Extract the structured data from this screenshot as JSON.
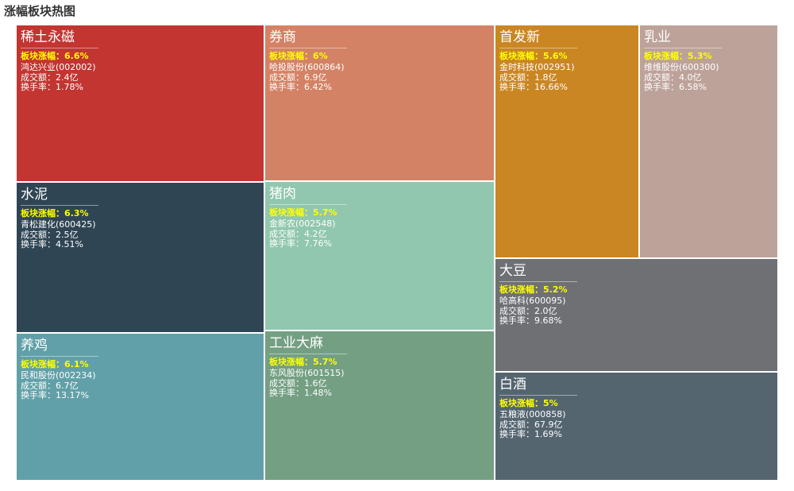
{
  "page": {
    "title": "涨幅板块热图"
  },
  "chart_data": {
    "type": "treemap",
    "title": "涨幅板块热图",
    "labels": {
      "rise": "板块涨幅：",
      "volume": "成交额：",
      "turnover": "换手率："
    },
    "items": [
      {
        "name": "稀土永磁",
        "rise": "6.6%",
        "stock": "鸿达兴业(002002)",
        "volume": "2.4亿",
        "turnover": "1.78%",
        "color": "#c23531"
      },
      {
        "name": "水泥",
        "rise": "6.3%",
        "stock": "青松建化(600425)",
        "volume": "2.5亿",
        "turnover": "4.51%",
        "color": "#2f4554"
      },
      {
        "name": "养鸡",
        "rise": "6.1%",
        "stock": "民和股份(002234)",
        "volume": "6.7亿",
        "turnover": "13.17%",
        "color": "#61a0a8"
      },
      {
        "name": "券商",
        "rise": "6%",
        "stock": "哈投股份(600864)",
        "volume": "6.9亿",
        "turnover": "6.42%",
        "color": "#d48265"
      },
      {
        "name": "猪肉",
        "rise": "5.7%",
        "stock": "金新农(002548)",
        "volume": "4.2亿",
        "turnover": "7.76%",
        "color": "#91c7ae"
      },
      {
        "name": "工业大麻",
        "rise": "5.7%",
        "stock": "东风股份(601515)",
        "volume": "1.6亿",
        "turnover": "1.48%",
        "color": "#749f83"
      },
      {
        "name": "首发新",
        "rise": "5.6%",
        "stock": "金时科技(002951)",
        "volume": "1.8亿",
        "turnover": "16.66%",
        "color": "#ca8622"
      },
      {
        "name": "乳业",
        "rise": "5.3%",
        "stock": "维维股份(600300)",
        "volume": "4.0亿",
        "turnover": "6.58%",
        "color": "#bda29a"
      },
      {
        "name": "大豆",
        "rise": "5.2%",
        "stock": "哈高科(600095)",
        "volume": "2.0亿",
        "turnover": "9.68%",
        "color": "#6e7074"
      },
      {
        "name": "白酒",
        "rise": "5%",
        "stock": "五粮液(000858)",
        "volume": "67.9亿",
        "turnover": "1.69%",
        "color": "#546570"
      }
    ]
  }
}
